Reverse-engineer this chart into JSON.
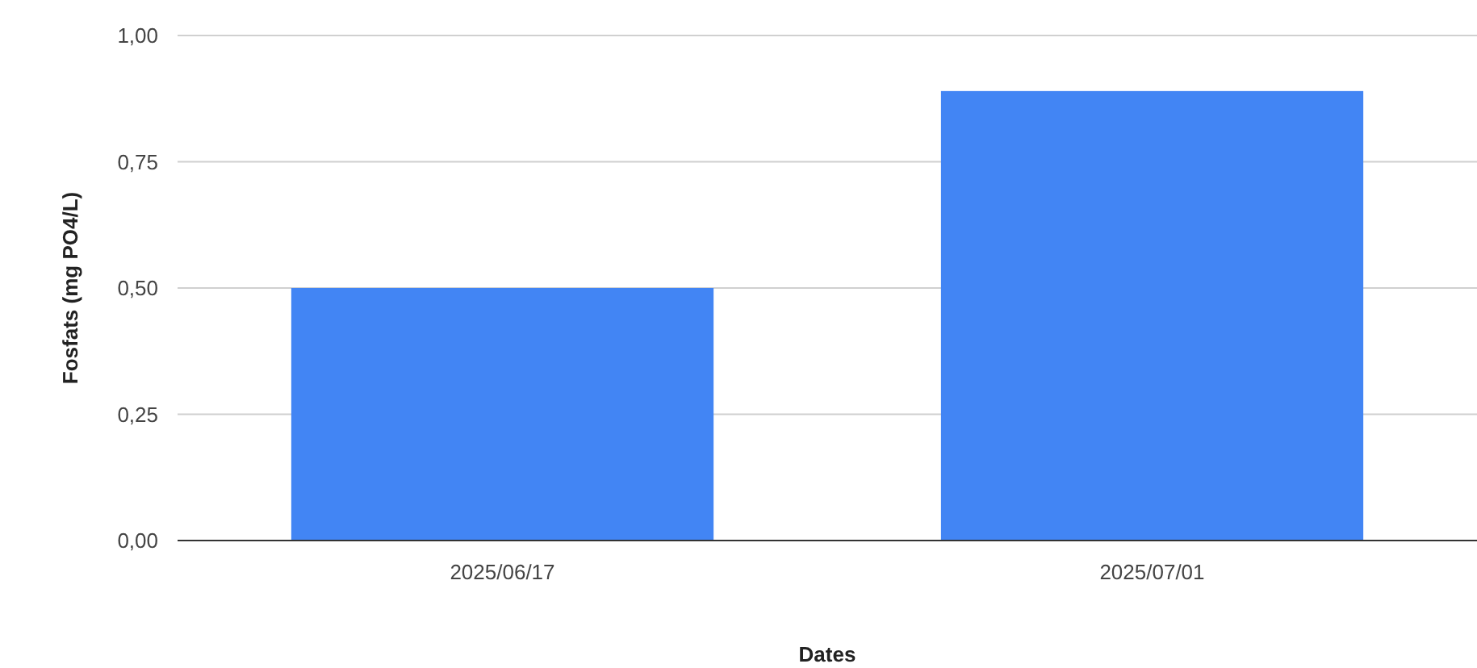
{
  "chart_data": {
    "type": "bar",
    "xlabel": "Dates",
    "ylabel": "Fosfats (mg PO4/L)",
    "categories": [
      "2025/06/17",
      "2025/07/01"
    ],
    "values": [
      0.5,
      0.89
    ],
    "color": "#4285f4",
    "ylim": [
      0,
      1
    ],
    "yticks": [
      {
        "value": 0,
        "label": "0,00"
      },
      {
        "value": 0.25,
        "label": "0,25"
      },
      {
        "value": 0.5,
        "label": "0,50"
      },
      {
        "value": 0.75,
        "label": "0,75"
      },
      {
        "value": 1,
        "label": "1,00"
      }
    ],
    "grid": "y"
  }
}
